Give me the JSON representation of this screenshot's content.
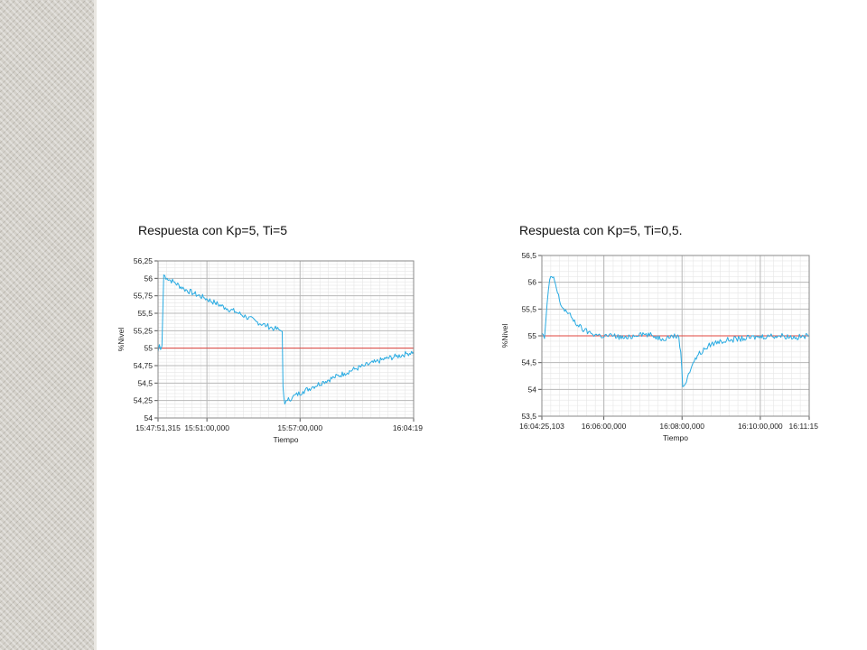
{
  "captions": [
    "Respuesta con Kp=5, Ti=5",
    "Respuesta con Kp=5, Ti=0,5."
  ],
  "colors": {
    "signal": "#29abe2",
    "setpoint": "#e0443e",
    "major_grid": "#b8b8b8",
    "minor_grid": "#e6e6e6",
    "plot_bg": "#ffffff",
    "sidebar": "#d3d0c9"
  },
  "chart_data": [
    {
      "type": "line",
      "title": "Respuesta con Kp=5, Ti=5",
      "xlabel": "Tiempo",
      "ylabel": "%Nivel",
      "ylim": [
        54,
        56.25
      ],
      "yticks": [
        54,
        54.25,
        54.5,
        54.75,
        55,
        55.25,
        55.5,
        55.75,
        56,
        56.25
      ],
      "ytick_labels": [
        "54",
        "54,25",
        "54,5",
        "54,75",
        "55",
        "55,25",
        "55,5",
        "55,75",
        "56",
        "56,25"
      ],
      "xlim": [
        "15:47:51,315",
        "16:04:19"
      ],
      "xlim_seconds": [
        0,
        988
      ],
      "xticks_seconds": [
        0,
        189,
        549,
        988
      ],
      "xtick_labels": [
        "15:47:51,315",
        "15:51:00,000",
        "15:57:00,000",
        "16:04:19"
      ],
      "grid": true,
      "series": [
        {
          "role": "setpoint",
          "x": [
            0,
            988
          ],
          "y": [
            55,
            55
          ]
        },
        {
          "role": "process",
          "x": [
            0,
            5,
            10,
            15,
            22,
            35,
            60,
            100,
            140,
            180,
            220,
            260,
            300,
            340,
            380,
            420,
            450,
            470,
            480,
            483,
            490,
            500,
            520,
            560,
            600,
            640,
            680,
            720,
            760,
            800,
            840,
            880,
            920,
            960,
            988
          ],
          "y": [
            54.95,
            55.05,
            54.98,
            55.03,
            56.05,
            56.0,
            55.95,
            55.85,
            55.78,
            55.72,
            55.65,
            55.58,
            55.52,
            55.45,
            55.38,
            55.32,
            55.28,
            55.26,
            55.24,
            54.45,
            54.2,
            54.25,
            54.3,
            54.38,
            54.45,
            54.52,
            54.58,
            54.64,
            54.7,
            54.75,
            54.8,
            54.85,
            54.88,
            54.92,
            54.95
          ]
        }
      ]
    },
    {
      "type": "line",
      "title": "Respuesta con Kp=5, Ti=0,5.",
      "xlabel": "Tiempo",
      "ylabel": "%Nivel",
      "ylim": [
        53.5,
        56.5
      ],
      "yticks": [
        53.5,
        54,
        54.5,
        55,
        55.5,
        56,
        56.5
      ],
      "ytick_labels": [
        "53,5",
        "54",
        "54,5",
        "55",
        "55,5",
        "56",
        "56,5"
      ],
      "xlim": [
        "16:04:25,103",
        "16:11:15"
      ],
      "xlim_seconds": [
        0,
        410
      ],
      "xticks_seconds": [
        0,
        95,
        215,
        335,
        410
      ],
      "xtick_labels": [
        "16:04:25,103",
        "16:06:00,000",
        "16:08:00,000",
        "16:10:00,000",
        "16:11:15"
      ],
      "grid": true,
      "series": [
        {
          "role": "setpoint",
          "x": [
            0,
            410
          ],
          "y": [
            55,
            55
          ]
        },
        {
          "role": "process",
          "x": [
            0,
            4,
            8,
            12,
            18,
            24,
            30,
            38,
            45,
            55,
            65,
            75,
            90,
            110,
            130,
            150,
            170,
            185,
            200,
            210,
            213,
            216,
            220,
            225,
            232,
            240,
            250,
            260,
            275,
            290,
            310,
            330,
            350,
            370,
            390,
            410
          ],
          "y": [
            55.05,
            54.95,
            55.6,
            56.05,
            56.1,
            55.8,
            55.55,
            55.45,
            55.35,
            55.2,
            55.1,
            55.05,
            55.0,
            55.0,
            54.95,
            55.05,
            55.0,
            54.95,
            55.0,
            54.98,
            54.7,
            54.05,
            54.1,
            54.3,
            54.5,
            54.65,
            54.75,
            54.85,
            54.9,
            54.93,
            54.95,
            54.98,
            55.0,
            55.0,
            54.97,
            55.0
          ]
        }
      ]
    }
  ]
}
